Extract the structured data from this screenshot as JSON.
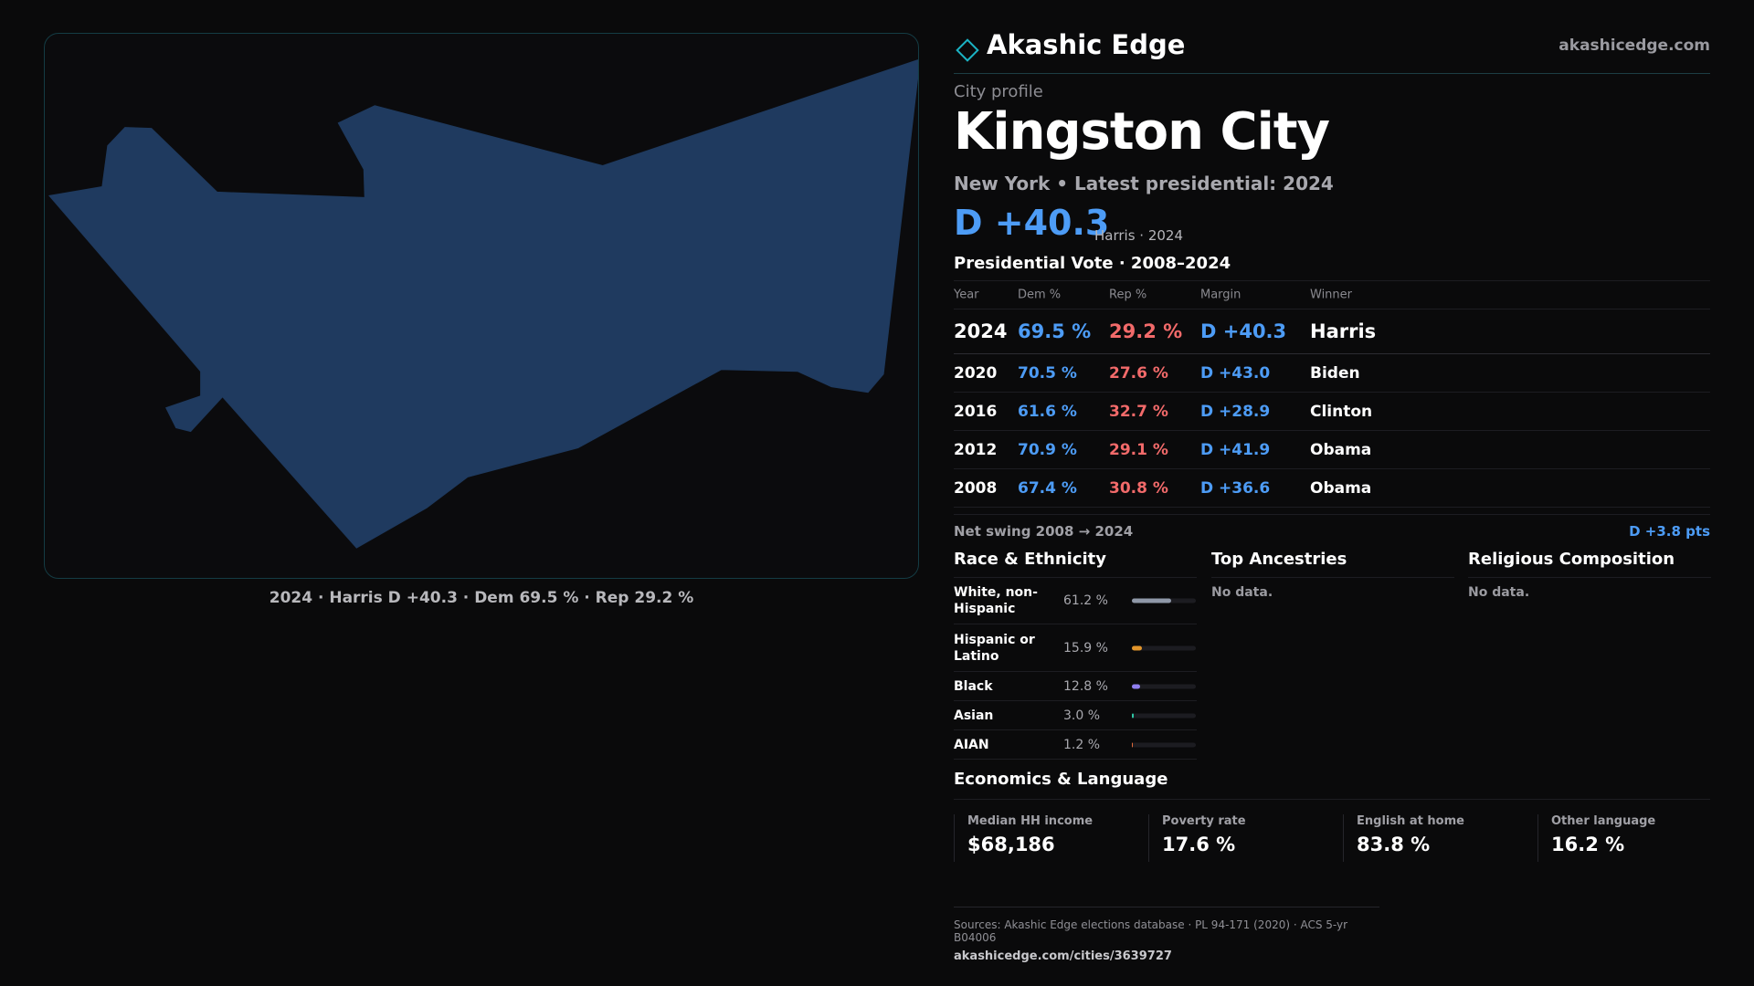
{
  "map": {
    "caption": "2024 · Harris D +40.3 · Dem 69.5 % · Rep 29.2 %",
    "fill_color": "#1f3a5f",
    "border_color": "#143c44"
  },
  "brand": {
    "name": "Akashic Edge",
    "url": "akashicedge.com",
    "logo_icon": "diamond-outline-icon",
    "accent": "#1bb3c4"
  },
  "profile": {
    "kicker": "City profile",
    "city": "Kingston City",
    "subline": "New York  • Latest presidential: 2024",
    "margin": "D +40.3",
    "margin_note": "Harris · 2024"
  },
  "vote": {
    "title": "Presidential Vote · 2008–2024",
    "headers": [
      "Year",
      "Dem %",
      "Rep %",
      "Margin",
      "Winner"
    ],
    "rows": [
      {
        "year": "2024",
        "dem": "69.5 %",
        "rep": "29.2 %",
        "margin": "D +40.3",
        "winner": "Harris"
      },
      {
        "year": "2020",
        "dem": "70.5 %",
        "rep": "27.6 %",
        "margin": "D +43.0",
        "winner": "Biden"
      },
      {
        "year": "2016",
        "dem": "61.6 %",
        "rep": "32.7 %",
        "margin": "D +28.9",
        "winner": "Clinton"
      },
      {
        "year": "2012",
        "dem": "70.9 %",
        "rep": "29.1 %",
        "margin": "D +41.9",
        "winner": "Obama"
      },
      {
        "year": "2008",
        "dem": "67.4 %",
        "rep": "30.8 %",
        "margin": "D +36.6",
        "winner": "Obama"
      }
    ],
    "swing_label": "Net swing 2008 → 2024",
    "swing_value": "D +3.8 pts"
  },
  "race": {
    "title": "Race & Ethnicity",
    "rows": [
      {
        "label": "White, non-Hispanic",
        "pct": "61.2 %",
        "value": 0.612,
        "color": "#8f98a8"
      },
      {
        "label": "Hispanic or Latino",
        "pct": "15.9 %",
        "value": 0.159,
        "color": "#e2952b"
      },
      {
        "label": "Black",
        "pct": "12.8 %",
        "value": 0.128,
        "color": "#8f7ef0"
      },
      {
        "label": "Asian",
        "pct": "3.0 %",
        "value": 0.03,
        "color": "#2fc7a5"
      },
      {
        "label": "AIAN",
        "pct": "1.2 %",
        "value": 0.012,
        "color": "#e06a3a"
      }
    ]
  },
  "ancestries": {
    "title": "Top Ancestries",
    "empty": "No data."
  },
  "religion": {
    "title": "Religious Composition",
    "empty": "No data."
  },
  "economics": {
    "title": "Economics & Language",
    "stats": [
      {
        "label": "Median HH income",
        "value": "$68,186"
      },
      {
        "label": "Poverty rate",
        "value": "17.6 %"
      },
      {
        "label": "English at home",
        "value": "83.8 %"
      },
      {
        "label": "Other language",
        "value": "16.2 %"
      }
    ]
  },
  "footer": {
    "sources": "Sources: Akashic Edge elections database · PL 94-171 (2020) · ACS 5-yr B04006",
    "url": "akashicedge.com/cities/3639727"
  }
}
